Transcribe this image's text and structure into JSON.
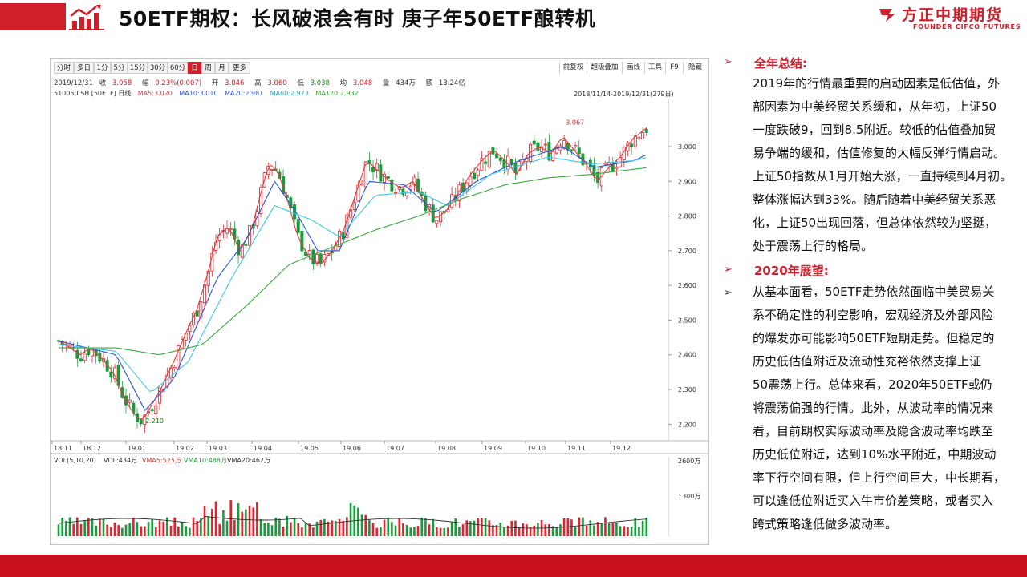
{
  "header": {
    "title": "50ETF期权：长风破浪会有时  庚子年50ETF酿转机",
    "brand_cn": "方正中期期货",
    "brand_en": "FOUNDER CIFCO FUTURES"
  },
  "toolbar": {
    "periods": [
      "分时",
      "多日",
      "1分",
      "5分",
      "15分",
      "30分",
      "60分",
      "日",
      "周",
      "月",
      "更多"
    ],
    "active_period": "日",
    "right_buttons": [
      "前复权",
      "超级叠加",
      "画线",
      "工具",
      "F9",
      "隐藏"
    ]
  },
  "quote": {
    "date": "2019/12/31",
    "close_label": "收",
    "close": "3.058",
    "change_label": "幅",
    "change": "0.23%(0.007)",
    "open_label": "开",
    "open": "3.046",
    "high_label": "高",
    "high": "3.060",
    "low_label": "低",
    "low": "3.038",
    "avg_label": "均",
    "avg": "3.048",
    "volume_label": "量",
    "volume": "434万",
    "amount_label": "额",
    "amount": "13.24亿"
  },
  "ma_legend": {
    "symbol": "510050.SH [50ETF] 日线",
    "ma5": "MA5:3.020",
    "ma10": "MA10:3.010",
    "ma20": "MA20:2.981",
    "ma60": "MA60:2.973",
    "ma120": "MA120:2.932"
  },
  "range_label": "2018/11/14-2019/12/31(279日)",
  "vol_legend": {
    "label": "VOL(5,10,20)",
    "vol": "VOL:434万",
    "vma5": "VMA5:525万",
    "vma10": "VMA10:488万",
    "vma20": "VMA20:462万"
  },
  "colors": {
    "brand_red": "#d01f2a",
    "up": "#e0242c",
    "down": "#1a9a3c",
    "ma5": "#e23c3c",
    "ma10": "#2b57d6",
    "ma20": "#3ec7e0",
    "ma60": "#3aa83a"
  },
  "chart_data": {
    "type": "candlestick",
    "y_ticks": [
      "3.000",
      "2.900",
      "2.800",
      "2.700",
      "2.600",
      "2.500",
      "2.400",
      "2.300",
      "2.200"
    ],
    "ylim": [
      2.18,
      3.12
    ],
    "x_ticks": [
      "18.11",
      "18.12",
      "19.01",
      "19.02",
      "19.03",
      "19.04",
      "19.05",
      "19.06",
      "19.07",
      "19.08",
      "19.09",
      "19.10",
      "19.11",
      "19.12"
    ],
    "annotations": {
      "high": "3.067",
      "low": "2.210"
    },
    "close_path": [
      [
        0,
        2.44
      ],
      [
        8,
        2.42
      ],
      [
        15,
        2.4
      ],
      [
        22,
        2.42
      ],
      [
        30,
        2.39
      ],
      [
        38,
        2.35
      ],
      [
        45,
        2.28
      ],
      [
        52,
        2.23
      ],
      [
        58,
        2.21
      ],
      [
        64,
        2.25
      ],
      [
        72,
        2.31
      ],
      [
        80,
        2.38
      ],
      [
        88,
        2.46
      ],
      [
        96,
        2.53
      ],
      [
        104,
        2.64
      ],
      [
        110,
        2.74
      ],
      [
        118,
        2.77
      ],
      [
        126,
        2.7
      ],
      [
        134,
        2.76
      ],
      [
        140,
        2.86
      ],
      [
        146,
        2.95
      ],
      [
        152,
        2.93
      ],
      [
        158,
        2.86
      ],
      [
        166,
        2.74
      ],
      [
        174,
        2.68
      ],
      [
        182,
        2.66
      ],
      [
        190,
        2.7
      ],
      [
        198,
        2.76
      ],
      [
        206,
        2.86
      ],
      [
        214,
        2.96
      ],
      [
        222,
        2.93
      ],
      [
        230,
        2.9
      ],
      [
        238,
        2.88
      ],
      [
        246,
        2.9
      ],
      [
        254,
        2.84
      ],
      [
        262,
        2.79
      ],
      [
        270,
        2.82
      ],
      [
        278,
        2.87
      ],
      [
        286,
        2.92
      ],
      [
        294,
        2.96
      ],
      [
        302,
        2.99
      ],
      [
        310,
        2.96
      ],
      [
        318,
        2.92
      ],
      [
        326,
        2.98
      ],
      [
        334,
        3.0
      ],
      [
        342,
        2.98
      ],
      [
        350,
        3.03
      ],
      [
        358,
        2.99
      ],
      [
        366,
        2.95
      ],
      [
        374,
        2.9
      ],
      [
        382,
        2.94
      ],
      [
        390,
        2.97
      ],
      [
        398,
        3.02
      ],
      [
        404,
        3.04
      ],
      [
        410,
        3.06
      ]
    ],
    "ma_paths": {
      "ma10": [
        [
          0,
          2.44
        ],
        [
          40,
          2.4
        ],
        [
          60,
          2.24
        ],
        [
          80,
          2.33
        ],
        [
          110,
          2.62
        ],
        [
          130,
          2.73
        ],
        [
          150,
          2.9
        ],
        [
          165,
          2.81
        ],
        [
          180,
          2.7
        ],
        [
          195,
          2.7
        ],
        [
          215,
          2.9
        ],
        [
          240,
          2.89
        ],
        [
          262,
          2.81
        ],
        [
          290,
          2.9
        ],
        [
          320,
          2.96
        ],
        [
          350,
          3.0
        ],
        [
          372,
          2.94
        ],
        [
          400,
          2.96
        ],
        [
          410,
          2.98
        ]
      ],
      "ma20": [
        [
          0,
          2.43
        ],
        [
          40,
          2.41
        ],
        [
          64,
          2.29
        ],
        [
          90,
          2.38
        ],
        [
          120,
          2.62
        ],
        [
          150,
          2.83
        ],
        [
          175,
          2.79
        ],
        [
          195,
          2.74
        ],
        [
          220,
          2.86
        ],
        [
          250,
          2.87
        ],
        [
          270,
          2.83
        ],
        [
          300,
          2.92
        ],
        [
          340,
          2.97
        ],
        [
          370,
          2.95
        ],
        [
          400,
          2.96
        ],
        [
          410,
          2.97
        ]
      ],
      "ma60": [
        [
          0,
          2.42
        ],
        [
          40,
          2.42
        ],
        [
          70,
          2.4
        ],
        [
          100,
          2.43
        ],
        [
          130,
          2.54
        ],
        [
          160,
          2.66
        ],
        [
          190,
          2.71
        ],
        [
          220,
          2.76
        ],
        [
          250,
          2.8
        ],
        [
          280,
          2.85
        ],
        [
          310,
          2.89
        ],
        [
          340,
          2.91
        ],
        [
          370,
          2.92
        ],
        [
          410,
          2.94
        ]
      ]
    },
    "volume_ticks": [
      "2600万",
      "1300万"
    ]
  },
  "summary": {
    "section1_title": "全年总结:",
    "section1_lines": [
      "2019年的行情最重要的启动因素是低估值，外",
      "部因素为中美经贸关系缓和，从年初，上证50",
      "一度跌破9，回到8.5附近。较低的估值叠加贸",
      "易争端的缓和，估值修复的大幅反弹行情启动。",
      "上证50指数从1月开始大涨，一直持续到4月初。",
      "整体涨幅达到33%。随后随着中美经贸关系恶",
      "化，上证50出现回落，但总体依然较为坚挺，",
      "处于震荡上行的格局。"
    ],
    "section2_title": "2020年展望:",
    "section2_lines": [
      "从基本面看，50ETF走势依然面临中美贸易关",
      "系不确定性的利空影响，宏观经济及外部风险",
      "的爆发亦可能影响50ETF短期走势。但稳定的",
      "历史低估值附近及流动性充裕依然支撑上证",
      "50震荡上行。总体来看，2020年50ETF或仍",
      "将震荡偏强的行情。此外，从波动率的情况来",
      "看，目前期权实际波动率及隐含波动率均跌至",
      "历史低位附近，达到10%水平附近，中期波动",
      "率下行空间有限，但上行空间巨大，中长期看，",
      "可以逢低位附近买入牛市价差策略，或者买入",
      "跨式策略逢低做多波动率。"
    ]
  }
}
